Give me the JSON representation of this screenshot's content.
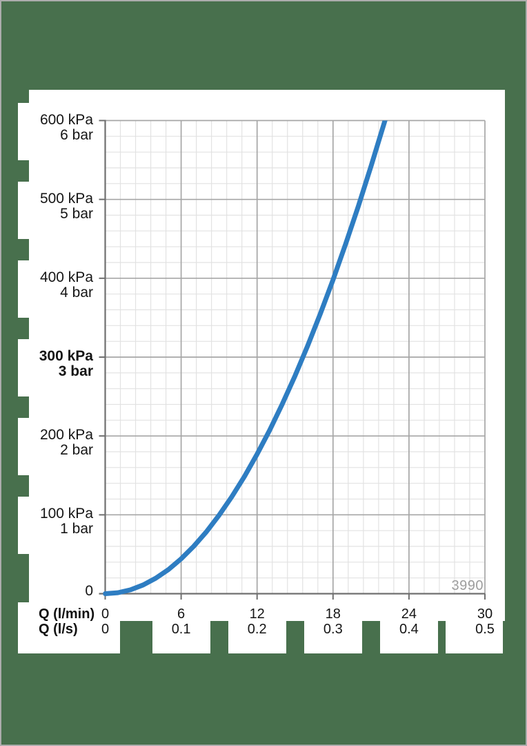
{
  "page": {
    "background_color": "#48704d",
    "frame_border_color": "#acacac",
    "panel_color": "#ffffff",
    "text_color": "#151515"
  },
  "chart_data": {
    "type": "line",
    "title": "",
    "x_axis": {
      "primary_label": "Q (l/min)",
      "secondary_label": "Q (l/s)",
      "range_lmin": [
        0,
        30
      ],
      "major_step_lmin": 6,
      "minor_divisions_per_major": 5,
      "ticks": [
        {
          "lmin": "0",
          "ls": "0",
          "value": 0
        },
        {
          "lmin": "6",
          "ls": "0.1",
          "value": 6
        },
        {
          "lmin": "12",
          "ls": "0.2",
          "value": 12
        },
        {
          "lmin": "18",
          "ls": "0.3",
          "value": 18
        },
        {
          "lmin": "24",
          "ls": "0.4",
          "value": 24
        },
        {
          "lmin": "30",
          "ls": "0.5",
          "value": 30
        }
      ]
    },
    "y_axis": {
      "range_kpa": [
        0,
        600
      ],
      "major_step_kpa": 100,
      "minor_divisions_per_major": 5,
      "ticks": [
        {
          "kpa": "600 kPa",
          "bar": "6 bar",
          "value": 600,
          "bold": false
        },
        {
          "kpa": "500 kPa",
          "bar": "5 bar",
          "value": 500,
          "bold": false
        },
        {
          "kpa": "400 kPa",
          "bar": "4 bar",
          "value": 400,
          "bold": false
        },
        {
          "kpa": "300 kPa",
          "bar": "3 bar",
          "value": 300,
          "bold": true
        },
        {
          "kpa": "200 kPa",
          "bar": "2 bar",
          "value": 200,
          "bold": false
        },
        {
          "kpa": "100 kPa",
          "bar": "1 bar",
          "value": 100,
          "bold": false
        },
        {
          "kpa": "0",
          "bar": null,
          "value": 0,
          "bold": false
        }
      ]
    },
    "series": [
      {
        "name": "pressure-loss-vs-flow-curve",
        "color": "#2e7dc2",
        "stroke_width": 7,
        "points_q_lmin_vs_kpa": [
          [
            0,
            0
          ],
          [
            1,
            1.2
          ],
          [
            2,
            4.9
          ],
          [
            3,
            11.1
          ],
          [
            4,
            19.7
          ],
          [
            5,
            30.7
          ],
          [
            6,
            44.2
          ],
          [
            7,
            60.2
          ],
          [
            8,
            78.6
          ],
          [
            9,
            99.5
          ],
          [
            10,
            122.9
          ],
          [
            11,
            148.6
          ],
          [
            12,
            176.9
          ],
          [
            13,
            207.6
          ],
          [
            14,
            240.8
          ],
          [
            15,
            276.4
          ],
          [
            16,
            314.5
          ],
          [
            17,
            355.0
          ],
          [
            18,
            398.0
          ],
          [
            19,
            443.5
          ],
          [
            20,
            491.4
          ],
          [
            21,
            541.8
          ],
          [
            22,
            594.6
          ],
          [
            22.35,
            613.0
          ]
        ]
      }
    ],
    "annotation": "3990",
    "annotation_color": "#9d9d9d",
    "grid": {
      "show": true,
      "major_color": "#a6a6a6",
      "minor_color": "#e2e2e2",
      "axis_color": "#6f6f6f",
      "legend_position": "none"
    }
  }
}
